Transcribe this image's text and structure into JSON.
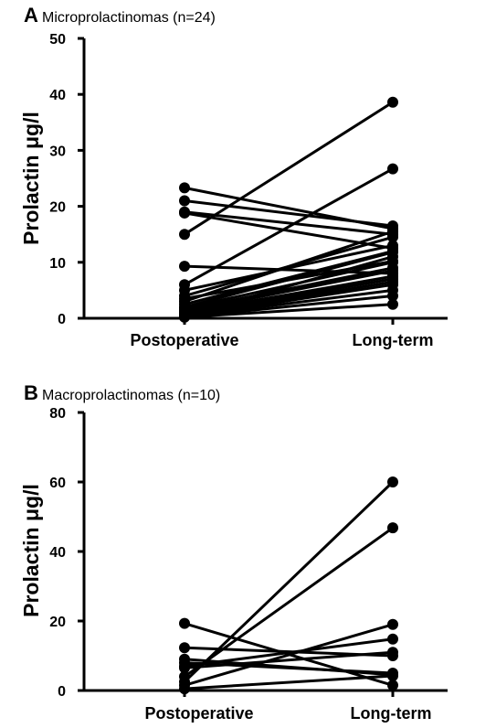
{
  "chart_data": [
    {
      "type": "line",
      "panel": "A",
      "title": "Microprolactinomas (n=24)",
      "ylabel": "Prolactin μg/l",
      "categories": [
        "Postoperative",
        "Long-term"
      ],
      "ylim": [
        0,
        50
      ],
      "yticks": [
        "0",
        "10",
        "20",
        "30",
        "40",
        "50"
      ],
      "pairs": [
        [
          23.3,
          16.0
        ],
        [
          21.0,
          16.5
        ],
        [
          19.0,
          15.0
        ],
        [
          18.8,
          12.5
        ],
        [
          15.0,
          38.6
        ],
        [
          9.3,
          8.0
        ],
        [
          6.0,
          26.7
        ],
        [
          5.0,
          13.0
        ],
        [
          4.0,
          14.5
        ],
        [
          3.5,
          10.2
        ],
        [
          3.0,
          15.5
        ],
        [
          2.5,
          12.0
        ],
        [
          2.0,
          11.8
        ],
        [
          1.8,
          10.0
        ],
        [
          1.5,
          9.0
        ],
        [
          1.2,
          8.5
        ],
        [
          1.0,
          7.5
        ],
        [
          0.8,
          7.0
        ],
        [
          0.5,
          6.5
        ],
        [
          0.5,
          11.0
        ],
        [
          0.3,
          6.0
        ],
        [
          0.3,
          5.0
        ],
        [
          0.2,
          4.0
        ],
        [
          0.2,
          2.5
        ]
      ]
    },
    {
      "type": "line",
      "panel": "B",
      "title": "Macroprolactinomas (n=10)",
      "ylabel": "Prolactin μg/l",
      "categories": [
        "Postoperative",
        "Long-term"
      ],
      "ylim": [
        0,
        80
      ],
      "yticks": [
        "0",
        "20",
        "40",
        "60",
        "80"
      ],
      "pairs": [
        [
          19.3,
          1.5
        ],
        [
          12.3,
          10.0
        ],
        [
          9.0,
          4.5
        ],
        [
          8.0,
          5.0
        ],
        [
          7.0,
          14.8
        ],
        [
          6.5,
          11.0
        ],
        [
          4.0,
          46.8
        ],
        [
          2.5,
          60.0
        ],
        [
          1.5,
          19.0
        ],
        [
          0.5,
          4.2
        ]
      ]
    }
  ]
}
